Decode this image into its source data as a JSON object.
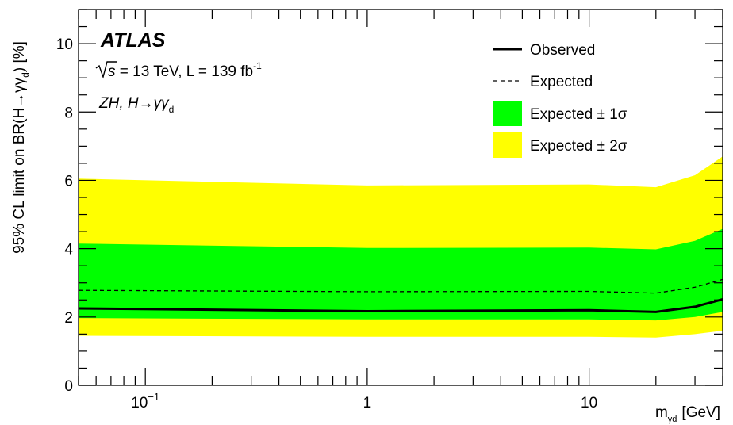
{
  "chart_data": {
    "type": "line",
    "title": "",
    "x_scale": "log",
    "xlim": [
      0.05,
      40
    ],
    "ylim": [
      0,
      11
    ],
    "grid": false,
    "legend_position": "top-right",
    "xlabel": {
      "main": "m",
      "sub": "γd",
      "unit": "[GeV]"
    },
    "ylabel": {
      "pre": "95% CL limit on BR(H→γγ",
      "sub": "d",
      "post": ") [%]"
    },
    "x": [
      0.05,
      1,
      10,
      20,
      30,
      40
    ],
    "series": [
      {
        "name": "Observed",
        "style": "solid",
        "color": "#000000",
        "values": [
          2.25,
          2.17,
          2.2,
          2.15,
          2.3,
          2.52
        ]
      },
      {
        "name": "Expected",
        "style": "dashed",
        "color": "#000000",
        "values": [
          2.78,
          2.74,
          2.75,
          2.7,
          2.87,
          3.1
        ]
      }
    ],
    "bands": [
      {
        "name": "Expected ± 2σ",
        "color": "#ffff00",
        "lower": [
          1.45,
          1.42,
          1.42,
          1.4,
          1.5,
          1.6
        ],
        "upper": [
          6.05,
          5.85,
          5.88,
          5.8,
          6.15,
          6.7
        ]
      },
      {
        "name": "Expected ± 1σ",
        "color": "#00ff00",
        "lower": [
          1.97,
          1.93,
          1.93,
          1.9,
          2.0,
          2.15
        ],
        "upper": [
          4.15,
          4.02,
          4.03,
          3.98,
          4.23,
          4.58
        ]
      }
    ],
    "y_ticks": [
      {
        "value": 0,
        "label": "0"
      },
      {
        "value": 2,
        "label": "2"
      },
      {
        "value": 4,
        "label": "4"
      },
      {
        "value": 6,
        "label": "6"
      },
      {
        "value": 8,
        "label": "8"
      },
      {
        "value": 10,
        "label": "10"
      }
    ],
    "x_ticks": [
      {
        "value": 0.1,
        "label": "10",
        "sup": "−1"
      },
      {
        "value": 1,
        "label": "1",
        "sup": ""
      },
      {
        "value": 10,
        "label": "10",
        "sup": ""
      }
    ],
    "legend": [
      {
        "label": "Observed",
        "kind": "solid"
      },
      {
        "label": "Expected",
        "kind": "dashed"
      },
      {
        "label": "Expected ± 1σ",
        "kind": "box",
        "color": "#00ff00"
      },
      {
        "label": "Expected ± 2σ",
        "kind": "box",
        "color": "#ffff00"
      }
    ],
    "annotations": {
      "experiment": "ATLAS",
      "sqrt_s": "s",
      "energy_lumi": " = 13 TeV, L = 139 fb",
      "lumi_sup": "-1",
      "process": "ZH, H→γγ",
      "process_sub": "d"
    }
  }
}
